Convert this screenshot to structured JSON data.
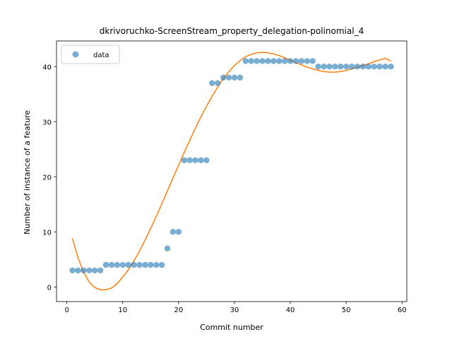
{
  "chart_data": {
    "type": "scatter",
    "title": "dkrivoruchko-ScreenStream_property_delegation-polinomial_4",
    "xlabel": "Commit number",
    "ylabel": "Number of instance of a feature",
    "xlim": [
      -1.85,
      60.85
    ],
    "ylim": [
      -2.65,
      44.65
    ],
    "xticks": [
      0,
      10,
      20,
      30,
      40,
      50,
      60
    ],
    "yticks": [
      0,
      10,
      20,
      30,
      40
    ],
    "grid": false,
    "legend": {
      "placement": "upper-left",
      "entries": [
        "data"
      ]
    },
    "colors": {
      "data": "#1f77b4",
      "fit": "#ff7f0e"
    },
    "series": [
      {
        "name": "data",
        "kind": "scatter",
        "x": [
          1,
          2,
          3,
          4,
          5,
          6,
          7,
          8,
          9,
          10,
          11,
          12,
          13,
          14,
          15,
          16,
          17,
          18,
          19,
          20,
          21,
          22,
          23,
          24,
          25,
          26,
          27,
          28,
          29,
          30,
          31,
          32,
          33,
          34,
          35,
          36,
          37,
          38,
          39,
          40,
          41,
          42,
          43,
          44,
          45,
          46,
          47,
          48,
          49,
          50,
          51,
          52,
          53,
          54,
          55,
          56,
          57,
          58
        ],
        "y": [
          3,
          3,
          3,
          3,
          3,
          3,
          4,
          4,
          4,
          4,
          4,
          4,
          4,
          4,
          4,
          4,
          4,
          7,
          10,
          10,
          23,
          23,
          23,
          23,
          23,
          37,
          37,
          38,
          38,
          38,
          38,
          41,
          41,
          41,
          41,
          41,
          41,
          41,
          41,
          41,
          41,
          41,
          41,
          41,
          40,
          40,
          40,
          40,
          40,
          40,
          40,
          40,
          40,
          40,
          40,
          40,
          40,
          40
        ]
      },
      {
        "kind": "line",
        "x": [
          1,
          2,
          3,
          4,
          5,
          6,
          7,
          8,
          9,
          10,
          11,
          12,
          13,
          14,
          15,
          16,
          17,
          18,
          19,
          20,
          21,
          22,
          23,
          24,
          25,
          26,
          27,
          28,
          29,
          30,
          31,
          32,
          33,
          34,
          35,
          36,
          37,
          38,
          39,
          40,
          41,
          42,
          43,
          44,
          45,
          46,
          47,
          48,
          49,
          50,
          51,
          52,
          53,
          54,
          55,
          56,
          57,
          58
        ],
        "y": [
          8.8,
          5.3,
          2.7,
          0.9,
          -0.1,
          -0.5,
          -0.5,
          -0.2,
          0.6,
          1.8,
          3.1,
          4.7,
          6.5,
          8.5,
          10.6,
          12.8,
          15.1,
          17.4,
          19.8,
          22.1,
          24.4,
          26.6,
          28.8,
          30.9,
          32.8,
          34.6,
          36.3,
          37.8,
          39.1,
          40.2,
          41.1,
          41.8,
          42.2,
          42.5,
          42.6,
          42.5,
          42.3,
          42.0,
          41.6,
          41.1,
          40.7,
          40.3,
          39.9,
          39.6,
          39.3,
          39.1,
          39.0,
          39.0,
          39.1,
          39.3,
          39.6,
          39.9,
          40.2,
          40.5,
          40.9,
          41.2,
          41.5,
          41.0
        ]
      }
    ]
  }
}
